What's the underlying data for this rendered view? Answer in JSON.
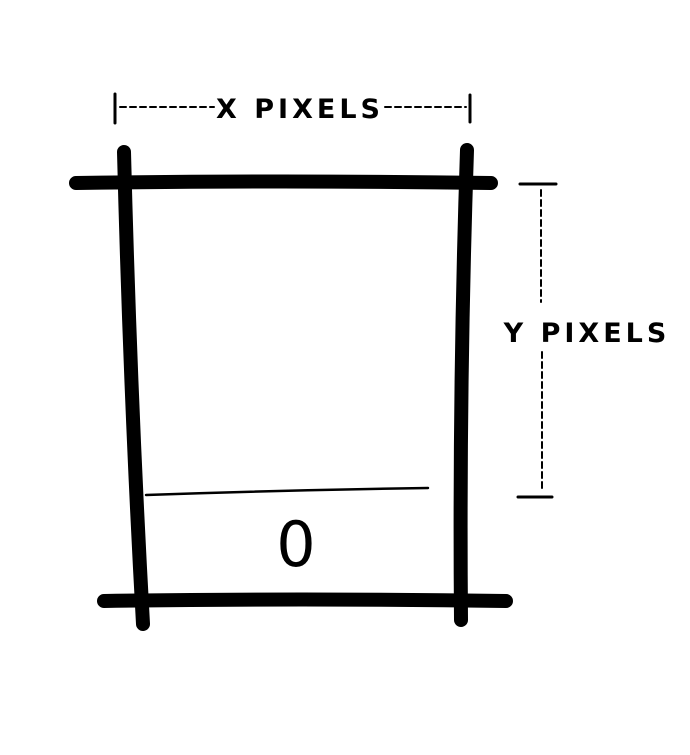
{
  "diagram": {
    "width_label": "X PIXELS",
    "height_label": "Y PIXELS",
    "bottom_cell_label": "0"
  },
  "colors": {
    "ink": "#000000",
    "background": "#ffffff"
  }
}
